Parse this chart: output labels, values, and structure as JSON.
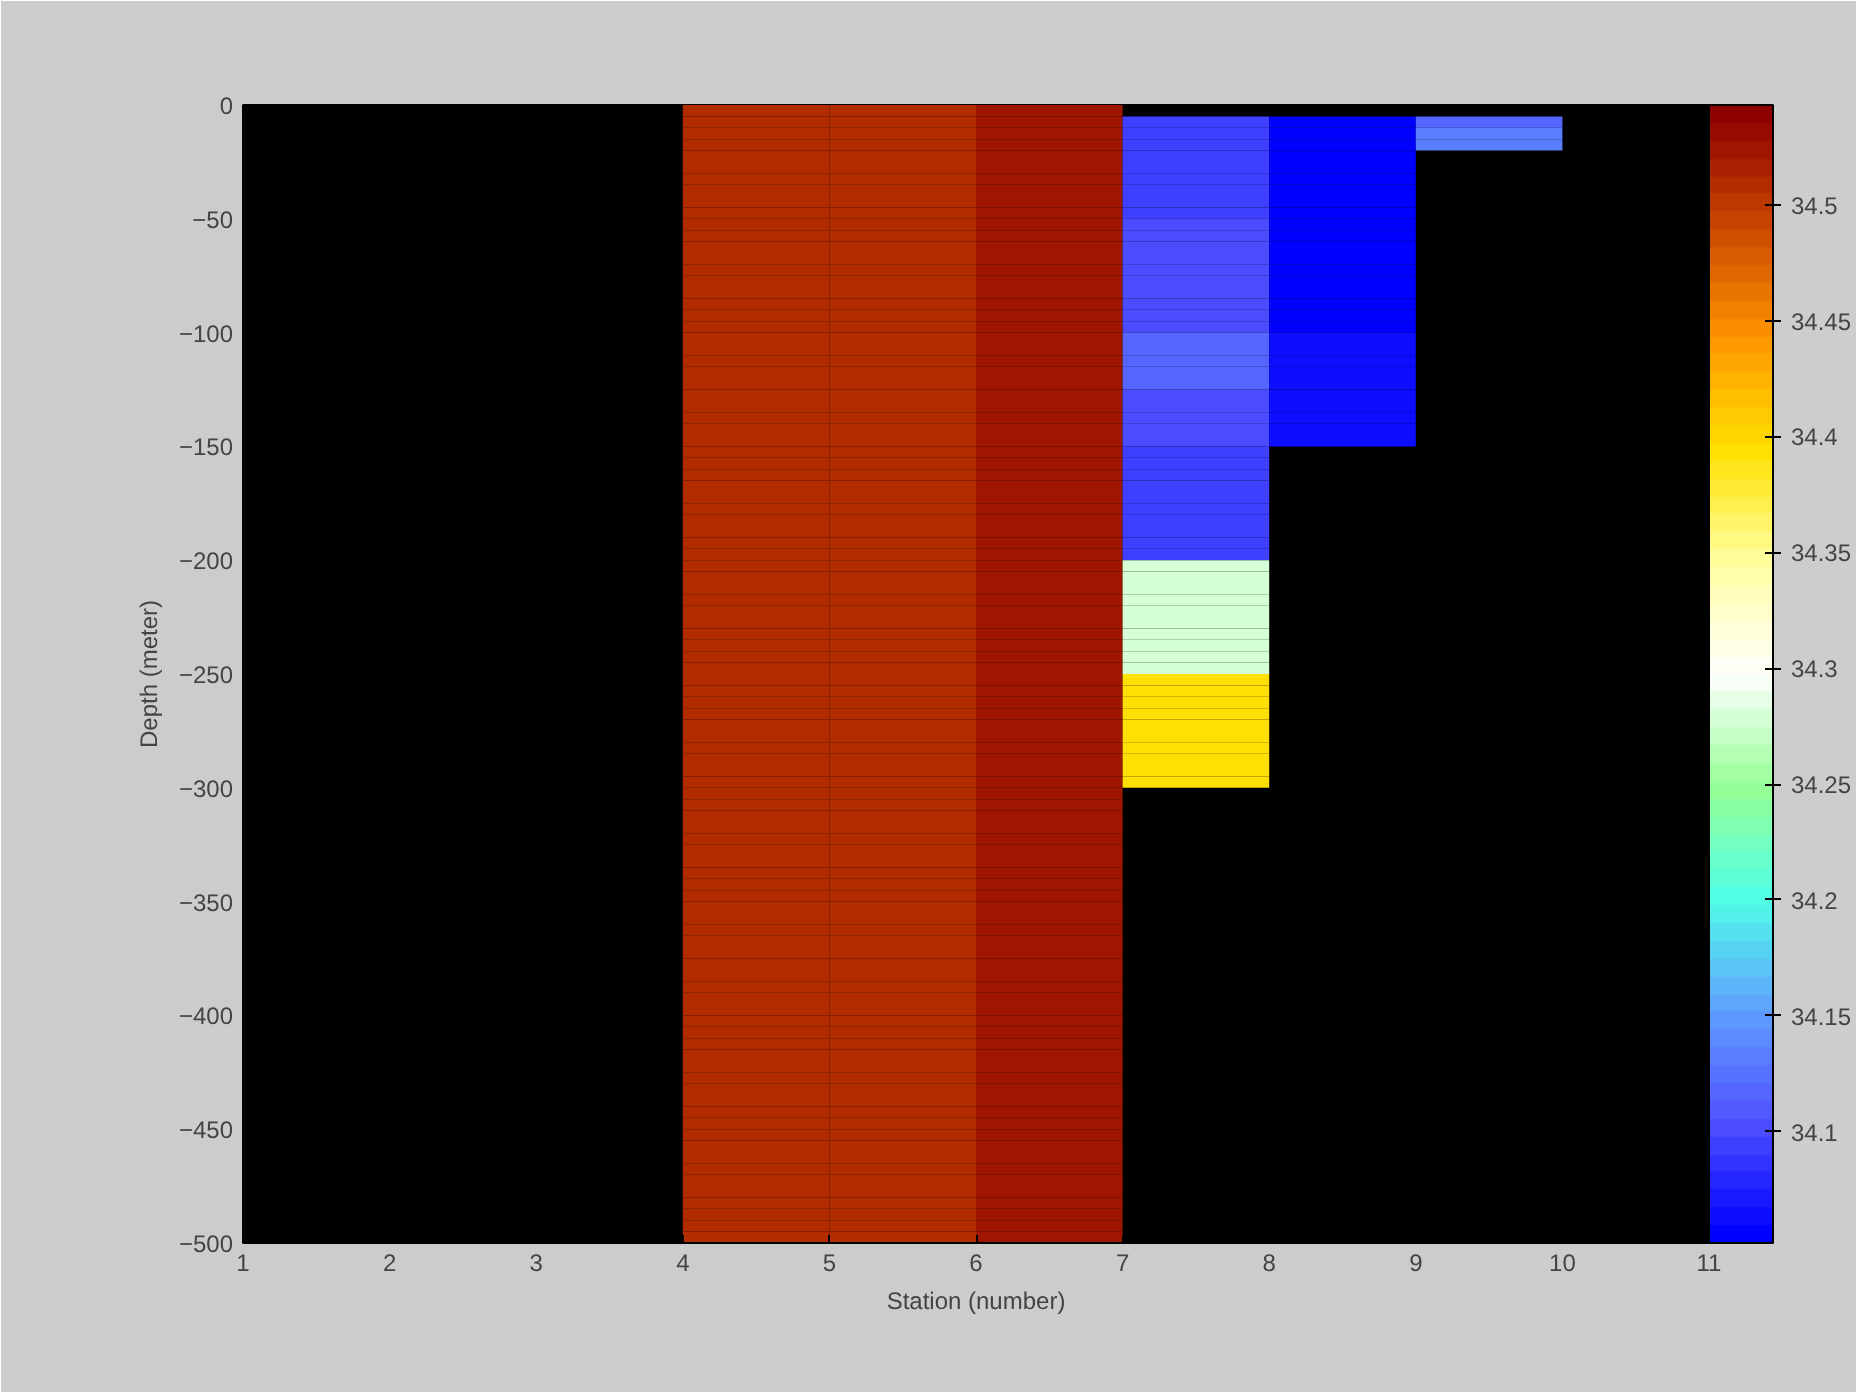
{
  "chart_data": {
    "type": "heatmap",
    "xlabel": "Station (number)",
    "ylabel": "Depth (meter)",
    "xlim": [
      1,
      11
    ],
    "xticks": [
      1,
      2,
      3,
      4,
      5,
      6,
      7,
      8,
      9,
      10,
      11
    ],
    "ylim": [
      -500,
      0
    ],
    "yticks": [
      -500,
      -450,
      -400,
      -350,
      -300,
      -250,
      -200,
      -150,
      -100,
      -50,
      0
    ],
    "clim": [
      34.052,
      34.543
    ],
    "cticks": [
      34.1,
      34.15,
      34.2,
      34.25,
      34.3,
      34.35,
      34.4,
      34.45,
      34.5
    ],
    "cells": [
      [
        null,
        null,
        null,
        34.51,
        34.51,
        34.525,
        null,
        null,
        null,
        null
      ],
      [
        null,
        null,
        null,
        34.51,
        34.51,
        34.525,
        34.095,
        34.055,
        34.115,
        null
      ],
      [
        null,
        null,
        null,
        34.51,
        34.51,
        34.525,
        34.095,
        34.055,
        34.13,
        null
      ],
      [
        null,
        null,
        null,
        34.51,
        34.51,
        34.525,
        34.095,
        34.055,
        34.13,
        null
      ],
      [
        null,
        null,
        null,
        34.51,
        34.51,
        34.525,
        34.095,
        34.055,
        null,
        null
      ],
      [
        null,
        null,
        null,
        34.51,
        34.51,
        34.525,
        34.095,
        34.055,
        null,
        null
      ],
      [
        null,
        null,
        null,
        34.51,
        34.51,
        34.525,
        34.095,
        34.055,
        null,
        null
      ],
      [
        null,
        null,
        null,
        34.51,
        34.51,
        34.525,
        34.095,
        34.055,
        null,
        null
      ],
      [
        null,
        null,
        null,
        34.51,
        34.51,
        34.525,
        34.095,
        34.055,
        null,
        null
      ],
      [
        null,
        null,
        null,
        34.51,
        34.51,
        34.525,
        34.095,
        34.055,
        null,
        null
      ],
      [
        null,
        null,
        null,
        34.51,
        34.51,
        34.525,
        34.105,
        34.055,
        null,
        null
      ],
      [
        null,
        null,
        null,
        34.51,
        34.51,
        34.525,
        34.105,
        34.055,
        null,
        null
      ],
      [
        null,
        null,
        null,
        34.51,
        34.51,
        34.525,
        34.105,
        34.055,
        null,
        null
      ],
      [
        null,
        null,
        null,
        34.51,
        34.51,
        34.525,
        34.105,
        34.055,
        null,
        null
      ],
      [
        null,
        null,
        null,
        34.51,
        34.51,
        34.525,
        34.105,
        34.055,
        null,
        null
      ],
      [
        null,
        null,
        null,
        34.51,
        34.51,
        34.525,
        34.105,
        34.055,
        null,
        null
      ],
      [
        null,
        null,
        null,
        34.51,
        34.51,
        34.525,
        34.105,
        34.055,
        null,
        null
      ],
      [
        null,
        null,
        null,
        34.51,
        34.51,
        34.525,
        34.105,
        34.055,
        null,
        null
      ],
      [
        null,
        null,
        null,
        34.51,
        34.51,
        34.525,
        34.105,
        34.055,
        null,
        null
      ],
      [
        null,
        null,
        null,
        34.51,
        34.51,
        34.525,
        34.105,
        34.055,
        null,
        null
      ],
      [
        null,
        null,
        null,
        34.51,
        34.51,
        34.525,
        34.115,
        34.065,
        null,
        null
      ],
      [
        null,
        null,
        null,
        34.51,
        34.51,
        34.525,
        34.115,
        34.065,
        null,
        null
      ],
      [
        null,
        null,
        null,
        34.51,
        34.51,
        34.525,
        34.115,
        34.065,
        null,
        null
      ],
      [
        null,
        null,
        null,
        34.51,
        34.51,
        34.525,
        34.115,
        34.065,
        null,
        null
      ],
      [
        null,
        null,
        null,
        34.51,
        34.51,
        34.525,
        34.115,
        34.065,
        null,
        null
      ],
      [
        null,
        null,
        null,
        34.51,
        34.51,
        34.525,
        34.105,
        34.065,
        null,
        null
      ],
      [
        null,
        null,
        null,
        34.51,
        34.51,
        34.525,
        34.105,
        34.065,
        null,
        null
      ],
      [
        null,
        null,
        null,
        34.51,
        34.51,
        34.525,
        34.105,
        34.065,
        null,
        null
      ],
      [
        null,
        null,
        null,
        34.51,
        34.51,
        34.525,
        34.105,
        34.065,
        null,
        null
      ],
      [
        null,
        null,
        null,
        34.51,
        34.51,
        34.525,
        34.105,
        34.065,
        null,
        null
      ],
      [
        null,
        null,
        null,
        34.51,
        34.51,
        34.525,
        34.095,
        null,
        null,
        null
      ],
      [
        null,
        null,
        null,
        34.51,
        34.51,
        34.525,
        34.095,
        null,
        null,
        null
      ],
      [
        null,
        null,
        null,
        34.51,
        34.51,
        34.525,
        34.095,
        null,
        null,
        null
      ],
      [
        null,
        null,
        null,
        34.51,
        34.51,
        34.525,
        34.095,
        null,
        null,
        null
      ],
      [
        null,
        null,
        null,
        34.51,
        34.51,
        34.525,
        34.095,
        null,
        null,
        null
      ],
      [
        null,
        null,
        null,
        34.51,
        34.51,
        34.525,
        34.095,
        null,
        null,
        null
      ],
      [
        null,
        null,
        null,
        34.51,
        34.51,
        34.525,
        34.095,
        null,
        null,
        null
      ],
      [
        null,
        null,
        null,
        34.51,
        34.51,
        34.525,
        34.095,
        null,
        null,
        null
      ],
      [
        null,
        null,
        null,
        34.51,
        34.51,
        34.525,
        34.095,
        null,
        null,
        null
      ],
      [
        null,
        null,
        null,
        34.51,
        34.51,
        34.525,
        34.095,
        null,
        null,
        null
      ],
      [
        null,
        null,
        null,
        34.51,
        34.51,
        34.525,
        34.28,
        null,
        null,
        null
      ],
      [
        null,
        null,
        null,
        34.51,
        34.51,
        34.525,
        34.28,
        null,
        null,
        null
      ],
      [
        null,
        null,
        null,
        34.51,
        34.51,
        34.525,
        34.28,
        null,
        null,
        null
      ],
      [
        null,
        null,
        null,
        34.51,
        34.51,
        34.525,
        34.28,
        null,
        null,
        null
      ],
      [
        null,
        null,
        null,
        34.51,
        34.51,
        34.525,
        34.28,
        null,
        null,
        null
      ],
      [
        null,
        null,
        null,
        34.51,
        34.51,
        34.525,
        34.28,
        null,
        null,
        null
      ],
      [
        null,
        null,
        null,
        34.51,
        34.51,
        34.525,
        34.28,
        null,
        null,
        null
      ],
      [
        null,
        null,
        null,
        34.51,
        34.51,
        34.525,
        34.28,
        null,
        null,
        null
      ],
      [
        null,
        null,
        null,
        34.51,
        34.51,
        34.525,
        34.28,
        null,
        null,
        null
      ],
      [
        null,
        null,
        null,
        34.51,
        34.51,
        34.525,
        34.28,
        null,
        null,
        null
      ],
      [
        null,
        null,
        null,
        34.51,
        34.51,
        34.525,
        34.39,
        null,
        null,
        null
      ],
      [
        null,
        null,
        null,
        34.51,
        34.51,
        34.525,
        34.39,
        null,
        null,
        null
      ],
      [
        null,
        null,
        null,
        34.51,
        34.51,
        34.525,
        34.39,
        null,
        null,
        null
      ],
      [
        null,
        null,
        null,
        34.51,
        34.51,
        34.525,
        34.39,
        null,
        null,
        null
      ],
      [
        null,
        null,
        null,
        34.51,
        34.51,
        34.525,
        34.39,
        null,
        null,
        null
      ],
      [
        null,
        null,
        null,
        34.51,
        34.51,
        34.525,
        34.39,
        null,
        null,
        null
      ],
      [
        null,
        null,
        null,
        34.51,
        34.51,
        34.525,
        34.39,
        null,
        null,
        null
      ],
      [
        null,
        null,
        null,
        34.51,
        34.51,
        34.525,
        34.39,
        null,
        null,
        null
      ],
      [
        null,
        null,
        null,
        34.51,
        34.51,
        34.525,
        34.39,
        null,
        null,
        null
      ],
      [
        null,
        null,
        null,
        34.51,
        34.51,
        34.525,
        34.39,
        null,
        null,
        null
      ],
      [
        null,
        null,
        null,
        34.51,
        34.51,
        34.525,
        null,
        null,
        null,
        null
      ],
      [
        null,
        null,
        null,
        34.51,
        34.51,
        34.525,
        null,
        null,
        null,
        null
      ],
      [
        null,
        null,
        null,
        34.51,
        34.51,
        34.525,
        null,
        null,
        null,
        null
      ],
      [
        null,
        null,
        null,
        34.51,
        34.51,
        34.525,
        null,
        null,
        null,
        null
      ],
      [
        null,
        null,
        null,
        34.51,
        34.51,
        34.525,
        null,
        null,
        null,
        null
      ],
      [
        null,
        null,
        null,
        34.51,
        34.51,
        34.525,
        null,
        null,
        null,
        null
      ],
      [
        null,
        null,
        null,
        34.51,
        34.51,
        34.525,
        null,
        null,
        null,
        null
      ],
      [
        null,
        null,
        null,
        34.51,
        34.51,
        34.525,
        null,
        null,
        null,
        null
      ],
      [
        null,
        null,
        null,
        34.51,
        34.51,
        34.525,
        null,
        null,
        null,
        null
      ],
      [
        null,
        null,
        null,
        34.51,
        34.51,
        34.525,
        null,
        null,
        null,
        null
      ],
      [
        null,
        null,
        null,
        34.51,
        34.51,
        34.525,
        null,
        null,
        null,
        null
      ],
      [
        null,
        null,
        null,
        34.51,
        34.51,
        34.525,
        null,
        null,
        null,
        null
      ],
      [
        null,
        null,
        null,
        34.51,
        34.51,
        34.525,
        null,
        null,
        null,
        null
      ],
      [
        null,
        null,
        null,
        34.51,
        34.51,
        34.525,
        null,
        null,
        null,
        null
      ],
      [
        null,
        null,
        null,
        34.51,
        34.51,
        34.525,
        null,
        null,
        null,
        null
      ],
      [
        null,
        null,
        null,
        34.51,
        34.51,
        34.525,
        null,
        null,
        null,
        null
      ],
      [
        null,
        null,
        null,
        34.51,
        34.51,
        34.525,
        null,
        null,
        null,
        null
      ],
      [
        null,
        null,
        null,
        34.51,
        34.51,
        34.525,
        null,
        null,
        null,
        null
      ],
      [
        null,
        null,
        null,
        34.51,
        34.51,
        34.525,
        null,
        null,
        null,
        null
      ],
      [
        null,
        null,
        null,
        34.51,
        34.51,
        34.525,
        null,
        null,
        null,
        null
      ],
      [
        null,
        null,
        null,
        34.51,
        34.51,
        34.525,
        null,
        null,
        null,
        null
      ],
      [
        null,
        null,
        null,
        34.51,
        34.51,
        34.525,
        null,
        null,
        null,
        null
      ],
      [
        null,
        null,
        null,
        34.51,
        34.51,
        34.525,
        null,
        null,
        null,
        null
      ],
      [
        null,
        null,
        null,
        34.51,
        34.51,
        34.525,
        null,
        null,
        null,
        null
      ],
      [
        null,
        null,
        null,
        34.51,
        34.51,
        34.525,
        null,
        null,
        null,
        null
      ],
      [
        null,
        null,
        null,
        34.51,
        34.51,
        34.525,
        null,
        null,
        null,
        null
      ],
      [
        null,
        null,
        null,
        34.51,
        34.51,
        34.525,
        null,
        null,
        null,
        null
      ],
      [
        null,
        null,
        null,
        34.51,
        34.51,
        34.525,
        null,
        null,
        null,
        null
      ],
      [
        null,
        null,
        null,
        34.51,
        34.51,
        34.525,
        null,
        null,
        null,
        null
      ],
      [
        null,
        null,
        null,
        34.51,
        34.51,
        34.525,
        null,
        null,
        null,
        null
      ],
      [
        null,
        null,
        null,
        34.51,
        34.51,
        34.525,
        null,
        null,
        null,
        null
      ],
      [
        null,
        null,
        null,
        34.51,
        34.51,
        34.525,
        null,
        null,
        null,
        null
      ],
      [
        null,
        null,
        null,
        34.51,
        34.51,
        34.525,
        null,
        null,
        null,
        null
      ],
      [
        null,
        null,
        null,
        34.51,
        34.51,
        34.525,
        null,
        null,
        null,
        null
      ],
      [
        null,
        null,
        null,
        34.51,
        34.51,
        34.525,
        null,
        null,
        null,
        null
      ],
      [
        null,
        null,
        null,
        34.51,
        34.51,
        34.525,
        null,
        null,
        null,
        null
      ],
      [
        null,
        null,
        null,
        34.51,
        34.51,
        34.525,
        null,
        null,
        null,
        null
      ],
      [
        null,
        null,
        null,
        34.51,
        34.51,
        34.525,
        null,
        null,
        null,
        null
      ],
      [
        null,
        null,
        null,
        34.51,
        34.51,
        34.525,
        null,
        null,
        null,
        null
      ],
      [
        null,
        null,
        null,
        34.51,
        34.51,
        34.525,
        null,
        null,
        null,
        null
      ]
    ]
  }
}
